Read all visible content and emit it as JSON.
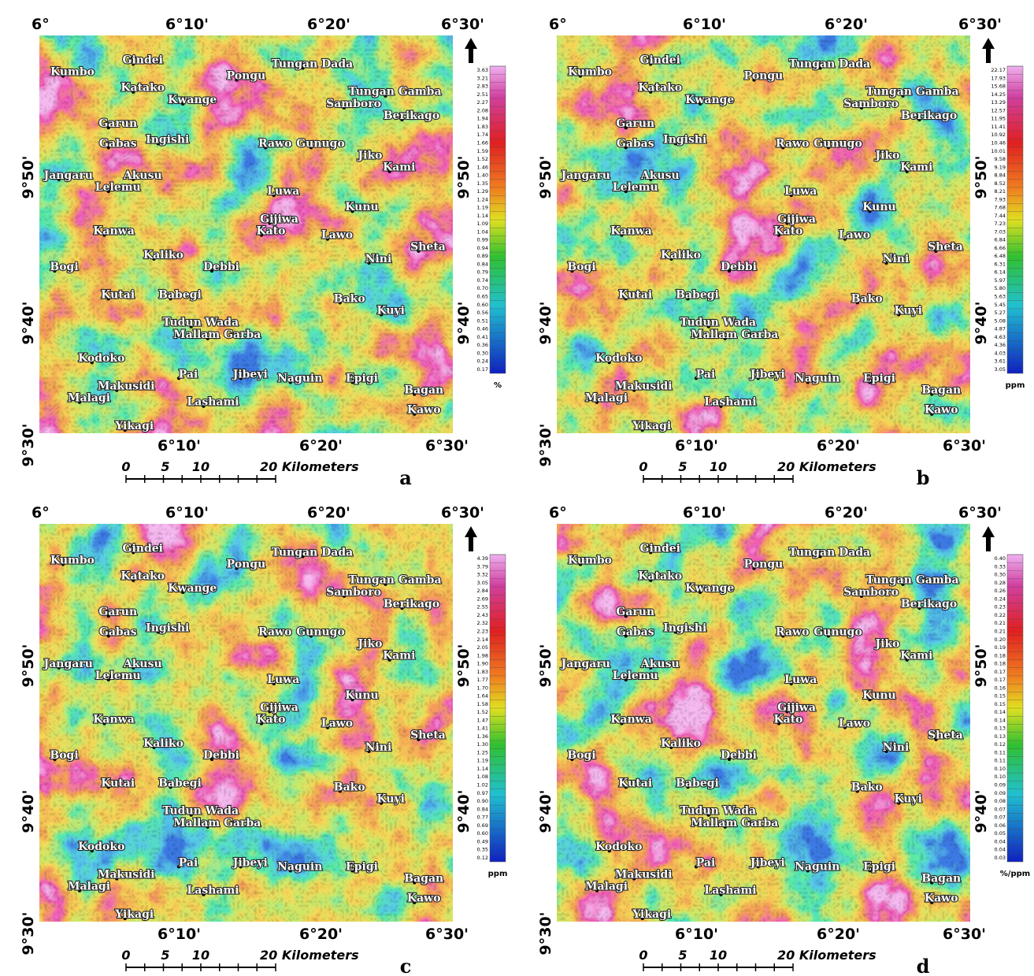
{
  "map_labels": {
    "top": [
      "6°",
      "6°10'",
      "6°20'",
      "6°30'"
    ],
    "bottom": [
      "6°10'",
      "6°20'",
      "6°30'"
    ],
    "left": [
      "9°50'",
      "9°40'",
      "9°30'"
    ],
    "right": [
      "9°50'",
      "9°40'"
    ]
  },
  "places": [
    "Gindei",
    "Kumbo",
    "Tungan Dada",
    "Pongu",
    "Katako",
    "Kwange",
    "Tungan Gamba",
    "Samboro",
    "Berikago",
    "Garun",
    "Gabas",
    "Ingishi",
    "Rawo",
    "Gunugo",
    "Jiko",
    "Kami",
    "Jangaru",
    "Akusu",
    "Lelemu",
    "Luwa",
    "Kunu",
    "Gijiwa",
    "Kato",
    "Lawo",
    "Kanwa",
    "Sheta",
    "Nini",
    "Bogi",
    "Kaliko",
    "Debbi",
    "Kutai",
    "Babegi",
    "Bako",
    "Kuyi",
    "Tudun Wada",
    "Mallam Garba",
    "Kodoko",
    "Pai",
    "Jibeyi",
    "Naguin",
    "Epigi",
    "Makusidi",
    "Bagan",
    "Malagi",
    "Lashami",
    "Kawo",
    "Yikagi"
  ],
  "scale_bar": [
    "0",
    "5",
    "10",
    "20 Kilometers"
  ],
  "panels": [
    {
      "letter": "a",
      "unit": "%",
      "colorbar": [
        "3.63",
        "3.21",
        "2.83",
        "2.51",
        "2.27",
        "2.08",
        "1.94",
        "1.83",
        "1.74",
        "1.66",
        "1.59",
        "1.52",
        "1.46",
        "1.40",
        "1.35",
        "1.29",
        "1.24",
        "1.19",
        "1.14",
        "1.09",
        "1.04",
        "0.99",
        "0.94",
        "0.89",
        "0.84",
        "0.79",
        "0.74",
        "0.70",
        "0.65",
        "0.60",
        "0.56",
        "0.51",
        "0.46",
        "0.41",
        "0.36",
        "0.30",
        "0.24",
        "0.17"
      ]
    },
    {
      "letter": "b",
      "unit": "ppm",
      "colorbar": [
        "22.17",
        "17.93",
        "15.68",
        "14.25",
        "13.29",
        "12.57",
        "11.95",
        "11.41",
        "10.92",
        "10.46",
        "10.01",
        "9.58",
        "9.19",
        "8.84",
        "8.52",
        "8.21",
        "7.93",
        "7.68",
        "7.44",
        "7.23",
        "7.03",
        "6.84",
        "6.66",
        "6.48",
        "6.31",
        "6.14",
        "5.97",
        "5.80",
        "5.63",
        "5.45",
        "5.27",
        "5.08",
        "4.87",
        "4.63",
        "4.36",
        "4.03",
        "3.61",
        "3.05"
      ]
    },
    {
      "letter": "c",
      "unit": "ppm",
      "colorbar": [
        "4.39",
        "3.79",
        "3.32",
        "3.05",
        "2.84",
        "2.69",
        "2.55",
        "2.43",
        "2.32",
        "2.23",
        "2.14",
        "2.05",
        "1.98",
        "1.90",
        "1.83",
        "1.77",
        "1.70",
        "1.64",
        "1.58",
        "1.52",
        "1.47",
        "1.41",
        "1.36",
        "1.30",
        "1.25",
        "1.19",
        "1.14",
        "1.08",
        "1.02",
        "0.97",
        "0.90",
        "0.84",
        "0.77",
        "0.69",
        "0.60",
        "0.49",
        "0.35",
        "0.12"
      ]
    },
    {
      "letter": "d",
      "unit": "%/ppm",
      "colorbar": [
        "0.40",
        "0.33",
        "0.30",
        "0.28",
        "0.26",
        "0.24",
        "0.23",
        "0.22",
        "0.21",
        "0.21",
        "0.20",
        "0.19",
        "0.18",
        "0.18",
        "0.17",
        "0.17",
        "0.16",
        "0.15",
        "0.15",
        "0.14",
        "0.14",
        "0.13",
        "0.13",
        "0.12",
        "0.11",
        "0.11",
        "0.10",
        "0.10",
        "0.09",
        "0.09",
        "0.08",
        "0.07",
        "0.07",
        "0.06",
        "0.05",
        "0.04",
        "0.04",
        "0.03"
      ]
    }
  ]
}
